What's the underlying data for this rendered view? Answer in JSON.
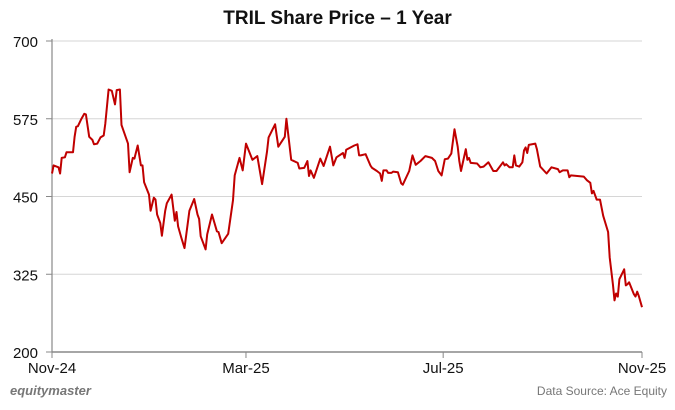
{
  "chart_data": {
    "type": "line",
    "title": "TRIL Share Price – 1 Year",
    "xlabel": "",
    "ylabel": "",
    "xlim": [
      "2024-11-01",
      "2025-11-01"
    ],
    "ylim": [
      200,
      700
    ],
    "yticks": [
      200,
      325,
      450,
      575,
      700
    ],
    "xticks": [
      {
        "date": "2024-11-01",
        "label": "Nov-24"
      },
      {
        "date": "2025-03-01",
        "label": "Mar-25"
      },
      {
        "date": "2025-07-01",
        "label": "Jul-25"
      },
      {
        "date": "2025-11-01",
        "label": "Nov-25"
      }
    ],
    "grid": "horizontal",
    "line_color": "#C00000",
    "series": [
      {
        "points": [
          [
            "2024-11-01",
            487
          ],
          [
            "2024-11-02",
            500
          ],
          [
            "2024-11-05",
            497
          ],
          [
            "2024-11-06",
            487
          ],
          [
            "2024-11-07",
            512
          ],
          [
            "2024-11-09",
            513
          ],
          [
            "2024-11-10",
            521
          ],
          [
            "2024-11-14",
            521
          ],
          [
            "2024-11-15",
            546
          ],
          [
            "2024-11-16",
            562
          ],
          [
            "2024-11-17",
            563
          ],
          [
            "2024-11-19",
            574
          ],
          [
            "2024-11-21",
            583
          ],
          [
            "2024-11-22",
            582
          ],
          [
            "2024-11-24",
            546
          ],
          [
            "2024-11-26",
            541
          ],
          [
            "2024-11-27",
            534
          ],
          [
            "2024-11-29",
            535
          ],
          [
            "2024-12-01",
            545
          ],
          [
            "2024-12-03",
            548
          ],
          [
            "2024-12-04",
            567
          ],
          [
            "2024-12-06",
            622
          ],
          [
            "2024-12-08",
            620
          ],
          [
            "2024-12-10",
            598
          ],
          [
            "2024-12-11",
            621
          ],
          [
            "2024-12-13",
            622
          ],
          [
            "2024-12-14",
            565
          ],
          [
            "2024-12-18",
            535
          ],
          [
            "2024-12-19",
            489
          ],
          [
            "2024-12-21",
            512
          ],
          [
            "2024-12-22",
            511
          ],
          [
            "2024-12-24",
            532
          ],
          [
            "2024-12-26",
            500
          ],
          [
            "2024-12-27",
            500
          ],
          [
            "2024-12-28",
            473
          ],
          [
            "2024-12-31",
            453
          ],
          [
            "2025-01-01",
            427
          ],
          [
            "2025-01-03",
            448
          ],
          [
            "2025-01-04",
            445
          ],
          [
            "2025-01-05",
            421
          ],
          [
            "2025-01-07",
            407
          ],
          [
            "2025-01-08",
            387
          ],
          [
            "2025-01-10",
            427
          ],
          [
            "2025-01-11",
            439
          ],
          [
            "2025-01-14",
            453
          ],
          [
            "2025-01-16",
            411
          ],
          [
            "2025-01-17",
            425
          ],
          [
            "2025-01-18",
            402
          ],
          [
            "2025-01-20",
            384
          ],
          [
            "2025-01-22",
            367
          ],
          [
            "2025-01-25",
            427
          ],
          [
            "2025-01-28",
            446
          ],
          [
            "2025-01-30",
            421
          ],
          [
            "2025-01-31",
            414
          ],
          [
            "2025-02-01",
            386
          ],
          [
            "2025-02-04",
            365
          ],
          [
            "2025-02-05",
            389
          ],
          [
            "2025-02-08",
            421
          ],
          [
            "2025-02-11",
            394
          ],
          [
            "2025-02-12",
            393
          ],
          [
            "2025-02-14",
            375
          ],
          [
            "2025-02-18",
            390
          ],
          [
            "2025-02-21",
            444
          ],
          [
            "2025-02-22",
            484
          ],
          [
            "2025-02-25",
            512
          ],
          [
            "2025-02-27",
            492
          ],
          [
            "2025-03-01",
            535
          ],
          [
            "2025-03-05",
            509
          ],
          [
            "2025-03-08",
            515
          ],
          [
            "2025-03-11",
            470
          ],
          [
            "2025-03-14",
            522
          ],
          [
            "2025-03-15",
            545
          ],
          [
            "2025-03-19",
            566
          ],
          [
            "2025-03-21",
            530
          ],
          [
            "2025-03-25",
            546
          ],
          [
            "2025-03-26",
            575
          ],
          [
            "2025-03-29",
            509
          ],
          [
            "2025-04-02",
            504
          ],
          [
            "2025-04-03",
            495
          ],
          [
            "2025-04-06",
            496
          ],
          [
            "2025-04-08",
            507
          ],
          [
            "2025-04-09",
            483
          ],
          [
            "2025-04-10",
            492
          ],
          [
            "2025-04-12",
            480
          ],
          [
            "2025-04-16",
            511
          ],
          [
            "2025-04-18",
            499
          ],
          [
            "2025-04-22",
            530
          ],
          [
            "2025-04-24",
            500
          ],
          [
            "2025-04-26",
            513
          ],
          [
            "2025-04-30",
            520
          ],
          [
            "2025-05-01",
            512
          ],
          [
            "2025-05-02",
            525
          ],
          [
            "2025-05-07",
            532
          ],
          [
            "2025-05-09",
            534
          ],
          [
            "2025-05-10",
            516
          ],
          [
            "2025-05-11",
            516
          ],
          [
            "2025-05-14",
            518
          ],
          [
            "2025-05-17",
            500
          ],
          [
            "2025-05-18",
            496
          ],
          [
            "2025-05-21",
            491
          ],
          [
            "2025-05-23",
            487
          ],
          [
            "2025-05-24",
            475
          ],
          [
            "2025-05-25",
            492
          ],
          [
            "2025-05-27",
            492
          ],
          [
            "2025-05-28",
            488
          ],
          [
            "2025-05-30",
            488
          ],
          [
            "2025-05-31",
            490
          ],
          [
            "2025-06-03",
            489
          ],
          [
            "2025-06-05",
            471
          ],
          [
            "2025-06-06",
            469
          ],
          [
            "2025-06-10",
            491
          ],
          [
            "2025-06-12",
            516
          ],
          [
            "2025-06-14",
            501
          ],
          [
            "2025-06-17",
            507
          ],
          [
            "2025-06-20",
            515
          ],
          [
            "2025-06-24",
            512
          ],
          [
            "2025-06-26",
            507
          ],
          [
            "2025-06-28",
            491
          ],
          [
            "2025-06-30",
            484
          ],
          [
            "2025-07-02",
            510
          ],
          [
            "2025-07-04",
            511
          ],
          [
            "2025-07-06",
            519
          ],
          [
            "2025-07-08",
            558
          ],
          [
            "2025-07-10",
            530
          ],
          [
            "2025-07-11",
            507
          ],
          [
            "2025-07-12",
            491
          ],
          [
            "2025-07-15",
            526
          ],
          [
            "2025-07-16",
            509
          ],
          [
            "2025-07-17",
            512
          ],
          [
            "2025-07-18",
            504
          ],
          [
            "2025-07-22",
            503
          ],
          [
            "2025-07-24",
            497
          ],
          [
            "2025-07-26",
            498
          ],
          [
            "2025-07-29",
            505
          ],
          [
            "2025-08-01",
            491
          ],
          [
            "2025-08-03",
            491
          ],
          [
            "2025-08-07",
            505
          ],
          [
            "2025-08-08",
            500
          ],
          [
            "2025-08-09",
            502
          ],
          [
            "2025-08-11",
            497
          ],
          [
            "2025-08-13",
            497
          ],
          [
            "2025-08-14",
            516
          ],
          [
            "2025-08-15",
            500
          ],
          [
            "2025-08-17",
            498
          ],
          [
            "2025-08-19",
            505
          ],
          [
            "2025-08-20",
            524
          ],
          [
            "2025-08-21",
            529
          ],
          [
            "2025-08-22",
            520
          ],
          [
            "2025-08-23",
            533
          ],
          [
            "2025-08-27",
            535
          ],
          [
            "2025-08-28",
            526
          ],
          [
            "2025-08-30",
            498
          ],
          [
            "2025-09-03",
            487
          ],
          [
            "2025-09-06",
            497
          ],
          [
            "2025-09-10",
            494
          ],
          [
            "2025-09-11",
            489
          ],
          [
            "2025-09-13",
            492
          ],
          [
            "2025-09-16",
            492
          ],
          [
            "2025-09-17",
            481
          ],
          [
            "2025-09-18",
            484
          ],
          [
            "2025-09-26",
            482
          ],
          [
            "2025-09-28",
            476
          ],
          [
            "2025-09-30",
            472
          ],
          [
            "2025-10-01",
            455
          ],
          [
            "2025-10-02",
            459
          ],
          [
            "2025-10-04",
            445
          ],
          [
            "2025-10-06",
            445
          ],
          [
            "2025-10-08",
            419
          ],
          [
            "2025-10-11",
            393
          ],
          [
            "2025-10-12",
            352
          ],
          [
            "2025-10-14",
            309
          ],
          [
            "2025-10-15",
            283
          ],
          [
            "2025-10-16",
            294
          ],
          [
            "2025-10-17",
            289
          ],
          [
            "2025-10-18",
            317
          ],
          [
            "2025-10-21",
            333
          ],
          [
            "2025-10-22",
            307
          ],
          [
            "2025-10-23",
            309
          ],
          [
            "2025-10-24",
            312
          ],
          [
            "2025-10-27",
            293
          ],
          [
            "2025-10-28",
            289
          ],
          [
            "2025-10-29",
            297
          ],
          [
            "2025-10-30",
            290
          ],
          [
            "2025-11-01",
            272
          ]
        ]
      }
    ]
  },
  "footer": {
    "brand": "equitymaster",
    "source": "Data Source: Ace Equity"
  }
}
